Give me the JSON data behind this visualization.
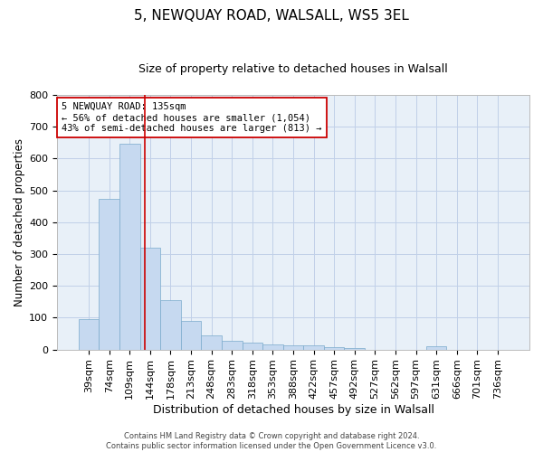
{
  "title_line1": "5, NEWQUAY ROAD, WALSALL, WS5 3EL",
  "title_line2": "Size of property relative to detached houses in Walsall",
  "xlabel": "Distribution of detached houses by size in Walsall",
  "ylabel": "Number of detached properties",
  "footer_line1": "Contains HM Land Registry data © Crown copyright and database right 2024.",
  "footer_line2": "Contains public sector information licensed under the Open Government Licence v3.0.",
  "categories": [
    "39sqm",
    "74sqm",
    "109sqm",
    "144sqm",
    "178sqm",
    "213sqm",
    "248sqm",
    "283sqm",
    "318sqm",
    "353sqm",
    "388sqm",
    "422sqm",
    "457sqm",
    "492sqm",
    "527sqm",
    "562sqm",
    "597sqm",
    "631sqm",
    "666sqm",
    "701sqm",
    "736sqm"
  ],
  "values": [
    95,
    472,
    648,
    321,
    155,
    89,
    45,
    27,
    23,
    17,
    14,
    13,
    8,
    4,
    0,
    0,
    0,
    10,
    0,
    0,
    0
  ],
  "bar_color": "#c6d9f0",
  "bar_edge_color": "#7aaacc",
  "annotation_box_text": "5 NEWQUAY ROAD: 135sqm\n← 56% of detached houses are smaller (1,054)\n43% of semi-detached houses are larger (813) →",
  "vline_x": 2.73,
  "vline_color": "#cc0000",
  "ylim": [
    0,
    800
  ],
  "yticks": [
    0,
    100,
    200,
    300,
    400,
    500,
    600,
    700,
    800
  ],
  "grid_color": "#c0d0e8",
  "bg_color": "#e8f0f8",
  "title1_fontsize": 11,
  "title2_fontsize": 9,
  "xlabel_fontsize": 9,
  "ylabel_fontsize": 8.5,
  "tick_fontsize": 8,
  "annotation_fontsize": 7.5,
  "footer_fontsize": 6
}
